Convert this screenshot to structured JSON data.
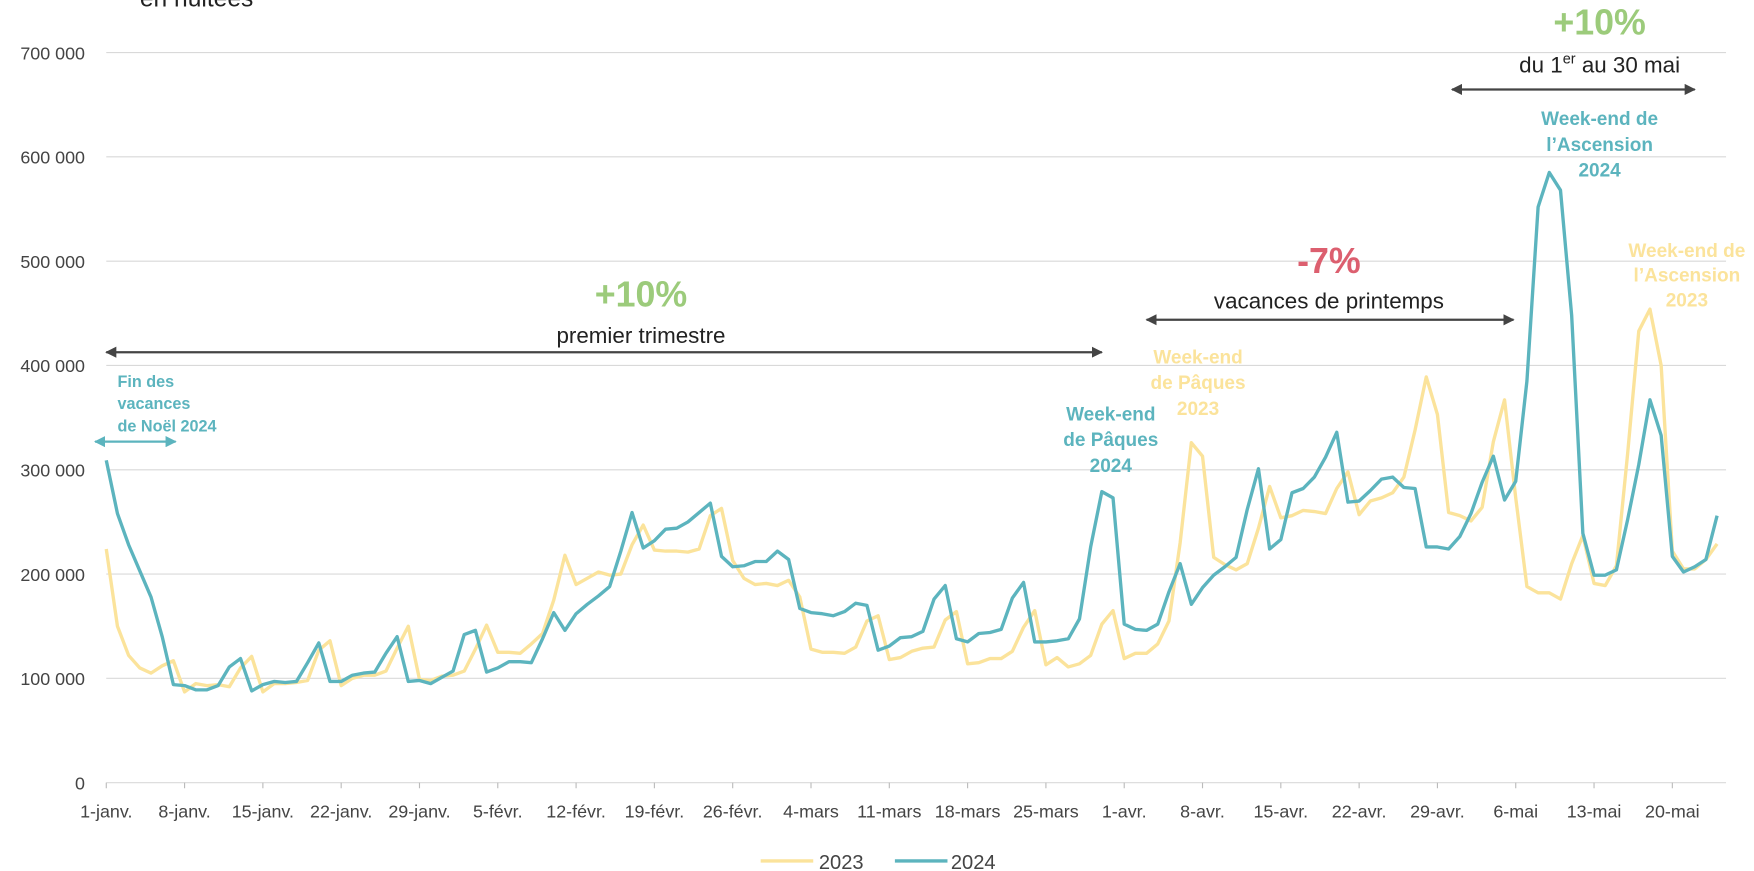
{
  "chart_data": {
    "type": "line",
    "subtitle": "en nuitées",
    "categories": [
      "1-janv.",
      null,
      null,
      null,
      null,
      null,
      null,
      "8-janv.",
      null,
      null,
      null,
      null,
      null,
      null,
      "15-janv.",
      null,
      null,
      null,
      null,
      null,
      null,
      "22-janv.",
      null,
      null,
      null,
      null,
      null,
      null,
      "29-janv.",
      null,
      null,
      null,
      null,
      null,
      null,
      "5-févr.",
      null,
      null,
      null,
      null,
      null,
      null,
      "12-févr.",
      null,
      null,
      null,
      null,
      null,
      null,
      "19-févr.",
      null,
      null,
      null,
      null,
      null,
      null,
      "26-févr.",
      null,
      null,
      null,
      null,
      null,
      null,
      "4-mars",
      null,
      null,
      null,
      null,
      null,
      null,
      "11-mars",
      null,
      null,
      null,
      null,
      null,
      null,
      "18-mars",
      null,
      null,
      null,
      null,
      null,
      null,
      "25-mars",
      null,
      null,
      null,
      null,
      null,
      null,
      "1-avr.",
      null,
      null,
      null,
      null,
      null,
      null,
      "8-avr.",
      null,
      null,
      null,
      null,
      null,
      null,
      "15-avr.",
      null,
      null,
      null,
      null,
      null,
      null,
      "22-avr.",
      null,
      null,
      null,
      null,
      null,
      null,
      "29-avr.",
      null,
      null,
      null,
      null,
      null,
      null,
      "6-mai",
      null,
      null,
      null,
      null,
      null,
      null,
      "13-mai",
      null,
      null,
      null,
      null,
      null,
      null,
      "20-mai",
      null,
      null,
      null,
      null
    ],
    "series": [
      {
        "name": "2023",
        "color": "#fbe39b",
        "values": [
          224000,
          150000,
          122000,
          110000,
          105000,
          112000,
          117000,
          87000,
          95000,
          93000,
          94000,
          92000,
          110000,
          121000,
          87000,
          95000,
          95000,
          96000,
          98000,
          127000,
          136000,
          93000,
          100000,
          103000,
          103000,
          107000,
          129000,
          150000,
          99000,
          98000,
          102000,
          103000,
          107000,
          128000,
          151000,
          125000,
          125000,
          124000,
          133000,
          143000,
          175000,
          218000,
          190000,
          196000,
          202000,
          199000,
          200000,
          228000,
          247000,
          223000,
          222000,
          222000,
          221000,
          224000,
          256000,
          263000,
          213000,
          196000,
          190000,
          191000,
          189000,
          194000,
          178000,
          128000,
          125000,
          125000,
          124000,
          130000,
          155000,
          160000,
          118000,
          120000,
          126000,
          129000,
          130000,
          156000,
          164000,
          114000,
          115000,
          119000,
          119000,
          126000,
          149000,
          165000,
          113000,
          120000,
          111000,
          114000,
          122000,
          152000,
          165000,
          119000,
          124000,
          124000,
          133000,
          155000,
          230000,
          326000,
          313000,
          216000,
          209000,
          204000,
          210000,
          244000,
          284000,
          254000,
          256000,
          261000,
          260000,
          258000,
          282000,
          298000,
          257000,
          270000,
          273000,
          278000,
          293000,
          338000,
          389000,
          353000,
          259000,
          256000,
          251000,
          264000,
          327000,
          367000,
          273000,
          188000,
          182000,
          182000,
          176000,
          210000,
          237000,
          191000,
          189000,
          208000,
          315000,
          433000,
          454000,
          400000,
          222000,
          205000,
          205000,
          214000,
          229000
        ]
      },
      {
        "name": "2024",
        "color": "#5cb4be",
        "values": [
          309000,
          258000,
          228000,
          203000,
          178000,
          140000,
          94000,
          93000,
          89000,
          89000,
          93000,
          111000,
          119000,
          88000,
          94000,
          97000,
          96000,
          97000,
          115000,
          134000,
          97000,
          97000,
          103000,
          105000,
          106000,
          124000,
          140000,
          97000,
          98000,
          95000,
          101000,
          107000,
          142000,
          146000,
          106000,
          110000,
          116000,
          116000,
          115000,
          138000,
          163000,
          146000,
          162000,
          171000,
          179000,
          188000,
          222000,
          259000,
          225000,
          232000,
          243000,
          244000,
          250000,
          259000,
          268000,
          217000,
          207000,
          208000,
          212000,
          212000,
          222000,
          214000,
          167000,
          163000,
          162000,
          160000,
          164000,
          172000,
          170000,
          127000,
          131000,
          139000,
          140000,
          145000,
          176000,
          189000,
          138000,
          135000,
          143000,
          144000,
          147000,
          177000,
          192000,
          135000,
          135000,
          136000,
          138000,
          157000,
          226000,
          279000,
          273000,
          152000,
          147000,
          146000,
          152000,
          183000,
          210000,
          171000,
          187000,
          199000,
          207000,
          216000,
          262000,
          301000,
          224000,
          233000,
          278000,
          282000,
          293000,
          312000,
          336000,
          269000,
          270000,
          280000,
          291000,
          293000,
          283000,
          282000,
          226000,
          226000,
          224000,
          236000,
          258000,
          288000,
          313000,
          271000,
          289000,
          385000,
          552000,
          585000,
          568000,
          448000,
          239000,
          199000,
          199000,
          204000,
          252000,
          305000,
          367000,
          333000,
          217000,
          202000,
          207000,
          214000,
          256000
        ]
      }
    ],
    "ylim": [
      0,
      700000
    ],
    "yticks": [
      0,
      {
        "value": 100000,
        "label": "100 000"
      },
      {
        "value": 200000,
        "label": "200 000"
      },
      {
        "value": 300000,
        "label": "300 000"
      },
      {
        "value": 400000,
        "label": "400 000"
      },
      {
        "value": 500000,
        "label": "500 000"
      },
      {
        "value": 600000,
        "label": "600 000"
      },
      {
        "value": 700000,
        "label": "700 000"
      }
    ],
    "grid": true,
    "legend": "bottom",
    "periods": [
      {
        "change": "+10%",
        "color": "#9ccb7b",
        "label": "premier trimestre"
      },
      {
        "change": "-7%",
        "color": "#dc5f6f",
        "label": "vacances de printemps"
      },
      {
        "change": "+10%",
        "color": "#9ccb7b",
        "label_parts": [
          "du 1",
          "er",
          " au 30 mai"
        ]
      }
    ],
    "events": [
      {
        "lines": [
          "Fin des",
          "vacances",
          "de Noël 2024"
        ],
        "color": "#5cb4be"
      },
      {
        "lines": [
          "Week-end",
          "de Pâques",
          "2024"
        ],
        "color": "#5cb4be"
      },
      {
        "lines": [
          "Week-end",
          "de Pâques",
          "2023"
        ],
        "color": "#fbe39b"
      },
      {
        "lines": [
          "Week-end de",
          "l’Ascension",
          "2024"
        ],
        "color": "#5cb4be"
      },
      {
        "lines": [
          "Week-end de",
          "l’Ascension",
          "2023"
        ],
        "color": "#fbe39b"
      }
    ]
  }
}
